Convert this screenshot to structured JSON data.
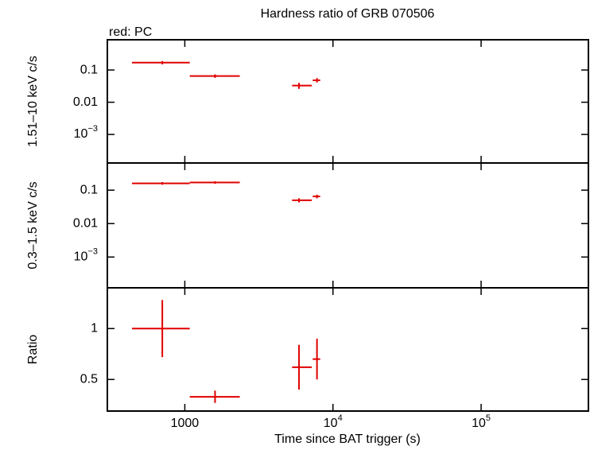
{
  "charts": [
    {
      "type": "errorbar",
      "title": "Hardness ratio of GRB 070506",
      "annotation": "red: PC",
      "ylabel": "1.51–10 keV c/s",
      "xscale": "log",
      "yscale": "log",
      "xlim": [
        300,
        530000
      ],
      "xticks": [
        1000,
        {
          "value": 10000,
          "label": "10",
          "exponent": "4"
        },
        {
          "value": 100000,
          "label": "10",
          "exponent": "5"
        }
      ],
      "ylim": [
        0.00013,
        0.87
      ],
      "yticks": [
        0.1,
        0.01,
        {
          "value": 0.001,
          "label": "10",
          "exponent": "−3"
        }
      ],
      "series": [
        {
          "color": "#e00000",
          "x": [
            705,
            1600,
            5900,
            7800
          ],
          "xlow": [
            440,
            1080,
            5300,
            7300
          ],
          "xhigh": [
            1080,
            2350,
            7200,
            8200
          ],
          "y": [
            0.17,
            0.065,
            0.033,
            0.048
          ],
          "ylow": [
            0.15,
            0.057,
            0.026,
            0.041
          ],
          "yhigh": [
            0.19,
            0.073,
            0.04,
            0.056
          ]
        }
      ]
    },
    {
      "type": "errorbar",
      "ylabel": "0.3–1.5 keV c/s",
      "xscale": "log",
      "yscale": "log",
      "xlim": [
        300,
        530000
      ],
      "xticks": [
        1000,
        {
          "value": 10000,
          "label": "10",
          "exponent": "4"
        },
        {
          "value": 100000,
          "label": "10",
          "exponent": "5"
        }
      ],
      "ylim": [
        0.00012,
        0.65
      ],
      "yticks": [
        0.1,
        0.01,
        {
          "value": 0.001,
          "label": "10",
          "exponent": "−3"
        }
      ],
      "series": [
        {
          "color": "#e00000",
          "x": [
            705,
            1600,
            5900,
            7800
          ],
          "xlow": [
            440,
            1080,
            5300,
            7300
          ],
          "xhigh": [
            1080,
            2350,
            7200,
            8200
          ],
          "y": [
            0.16,
            0.17,
            0.05,
            0.065
          ],
          "ylow": [
            0.145,
            0.155,
            0.043,
            0.057
          ],
          "yhigh": [
            0.175,
            0.185,
            0.057,
            0.073
          ]
        }
      ]
    },
    {
      "type": "errorbar",
      "ylabel": "Ratio",
      "xlabel": "Time since BAT trigger (s)",
      "xscale": "log",
      "yscale": "linear",
      "xlim": [
        300,
        530000
      ],
      "xticks": [
        1000,
        {
          "value": 10000,
          "label": "10",
          "exponent": "4"
        },
        {
          "value": 100000,
          "label": "10",
          "exponent": "5"
        }
      ],
      "ylim": [
        0.19,
        1.4
      ],
      "yticks": [
        0.5,
        1
      ],
      "series": [
        {
          "color": "#e00000",
          "x": [
            705,
            1600,
            5900,
            7800
          ],
          "xlow": [
            440,
            1080,
            5300,
            7300
          ],
          "xhigh": [
            1080,
            2350,
            7200,
            8200
          ],
          "y": [
            1.0,
            0.33,
            0.62,
            0.7
          ],
          "ylow": [
            0.72,
            0.27,
            0.4,
            0.5
          ],
          "yhigh": [
            1.28,
            0.39,
            0.84,
            0.9
          ]
        }
      ]
    }
  ]
}
